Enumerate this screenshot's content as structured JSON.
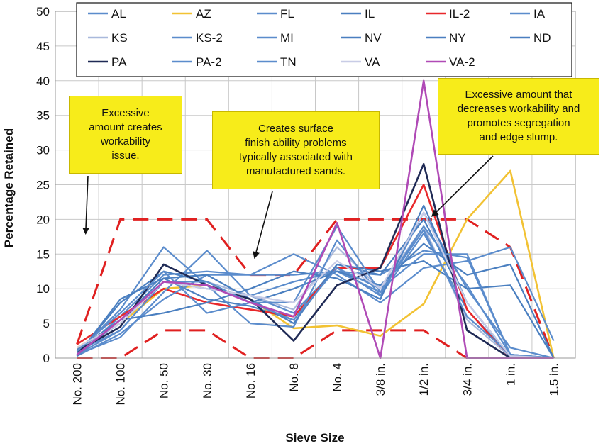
{
  "chart_data": {
    "type": "line",
    "xlabel": "Sieve Size",
    "ylabel": "Percentage Retained",
    "categories": [
      "No. 200",
      "No. 100",
      "No. 50",
      "No. 30",
      "No. 16",
      "No. 8",
      "No. 4",
      "3/8 in.",
      "1/2 in.",
      "3/4 in.",
      "1 in.",
      "1.5 in."
    ],
    "ylim": [
      0,
      50
    ],
    "yticks": [
      0,
      5,
      10,
      15,
      20,
      25,
      30,
      35,
      40,
      45,
      50
    ],
    "grid": "horizontal-and-vertical",
    "legend_position": "top",
    "series": [
      {
        "name": "AL",
        "color": "#5b8ccc",
        "values": [
          1.0,
          4.0,
          11.0,
          10.0,
          9.0,
          6.5,
          13.0,
          9.0,
          18.0,
          7.0,
          0.3,
          0.0
        ]
      },
      {
        "name": "AZ",
        "color": "#f2c233",
        "values": [
          1.5,
          5.0,
          10.0,
          10.5,
          8.5,
          4.3,
          4.7,
          3.2,
          7.8,
          20.0,
          27.0,
          0.0
        ]
      },
      {
        "name": "FL",
        "color": "#5b8ccc",
        "values": [
          0.5,
          6.0,
          12.0,
          12.5,
          12.0,
          12.0,
          12.5,
          12.0,
          15.5,
          14.5,
          0.5,
          0.0
        ]
      },
      {
        "name": "IL",
        "color": "#4a7fc0",
        "values": [
          1.2,
          5.5,
          11.5,
          8.5,
          7.5,
          5.5,
          13.5,
          12.0,
          20.0,
          8.0,
          0.3,
          0.0
        ]
      },
      {
        "name": "IL-2",
        "color": "#e8282b",
        "values": [
          2.0,
          6.0,
          10.0,
          8.0,
          7.0,
          6.0,
          13.0,
          13.0,
          25.0,
          7.0,
          0.0,
          0.0
        ]
      },
      {
        "name": "IA",
        "color": "#5b8ccc",
        "values": [
          0.3,
          3.5,
          8.5,
          12.0,
          12.0,
          15.0,
          12.0,
          8.0,
          13.0,
          14.0,
          16.0,
          2.5
        ]
      },
      {
        "name": "KS",
        "color": "#a9b9dc",
        "values": [
          1.0,
          5.0,
          11.0,
          11.0,
          9.0,
          7.0,
          16.0,
          10.0,
          19.0,
          5.5,
          0.2,
          0.0
        ]
      },
      {
        "name": "KS-2",
        "color": "#5b8ccc",
        "values": [
          0.8,
          7.0,
          16.0,
          10.5,
          5.0,
          4.5,
          17.0,
          9.0,
          21.0,
          10.0,
          1.5,
          0.0
        ]
      },
      {
        "name": "MI",
        "color": "#5b8ccc",
        "values": [
          0.5,
          3.0,
          9.5,
          15.5,
          9.0,
          11.0,
          12.5,
          9.5,
          19.0,
          10.5,
          0.5,
          0.0
        ]
      },
      {
        "name": "NV",
        "color": "#4a7fc0",
        "values": [
          0.3,
          5.5,
          6.5,
          8.0,
          10.0,
          12.5,
          11.5,
          8.5,
          22.0,
          8.0,
          0.2,
          0.0
        ]
      },
      {
        "name": "NY",
        "color": "#4a7fc0",
        "values": [
          0.5,
          8.0,
          12.5,
          11.0,
          8.0,
          10.0,
          12.5,
          10.5,
          16.5,
          12.0,
          13.5,
          0.0
        ]
      },
      {
        "name": "ND",
        "color": "#4a7fc0",
        "values": [
          0.3,
          8.5,
          11.5,
          12.0,
          8.5,
          5.0,
          13.5,
          12.5,
          14.0,
          10.0,
          10.5,
          0.0
        ]
      },
      {
        "name": "PA",
        "color": "#1f2a55",
        "values": [
          1.0,
          4.5,
          13.5,
          10.5,
          8.5,
          2.5,
          10.5,
          13.0,
          28.0,
          4.0,
          0.0,
          0.0
        ]
      },
      {
        "name": "PA-2",
        "color": "#5b8ccc",
        "values": [
          0.5,
          4.0,
          11.0,
          11.0,
          8.0,
          5.5,
          13.0,
          10.0,
          15.0,
          15.0,
          0.5,
          0.0
        ]
      },
      {
        "name": "TN",
        "color": "#5b8ccc",
        "values": [
          1.0,
          6.5,
          12.5,
          6.5,
          8.0,
          8.0,
          19.0,
          9.5,
          18.5,
          6.0,
          0.5,
          0.0
        ]
      },
      {
        "name": "VA",
        "color": "#c8cce6",
        "values": [
          1.5,
          5.0,
          11.0,
          10.0,
          9.0,
          8.0,
          14.0,
          10.0,
          21.0,
          8.0,
          0.3,
          0.0
        ]
      },
      {
        "name": "VA-2",
        "color": "#b04ab6",
        "values": [
          0.5,
          5.5,
          11.0,
          10.5,
          8.0,
          6.0,
          19.5,
          0.0,
          40.0,
          0.0,
          0.0,
          0.0
        ]
      }
    ],
    "limits": {
      "color": "#e02020",
      "upper": [
        2,
        20,
        20,
        20,
        12,
        12,
        20,
        20,
        20,
        20,
        16,
        0
      ],
      "lower": [
        0,
        0,
        4,
        4,
        0,
        0,
        4,
        4,
        4,
        0,
        0,
        0
      ]
    },
    "annotations": [
      {
        "text": [
          "Excessive",
          "amount creates",
          "workability",
          "issue."
        ],
        "arrow_to": {
          "x": 0.7,
          "y": 18
        }
      },
      {
        "text": [
          "Creates surface",
          "finish ability problems",
          "typically associated with",
          "manufactured sands."
        ],
        "arrow_to": {
          "x": 4.6,
          "y": 14.5
        }
      },
      {
        "text": [
          "Excessive amount that",
          "decreases workability and",
          "promotes segregation",
          "and edge slump."
        ],
        "arrow_to": {
          "x": 8.7,
          "y": 20.5
        }
      }
    ]
  }
}
